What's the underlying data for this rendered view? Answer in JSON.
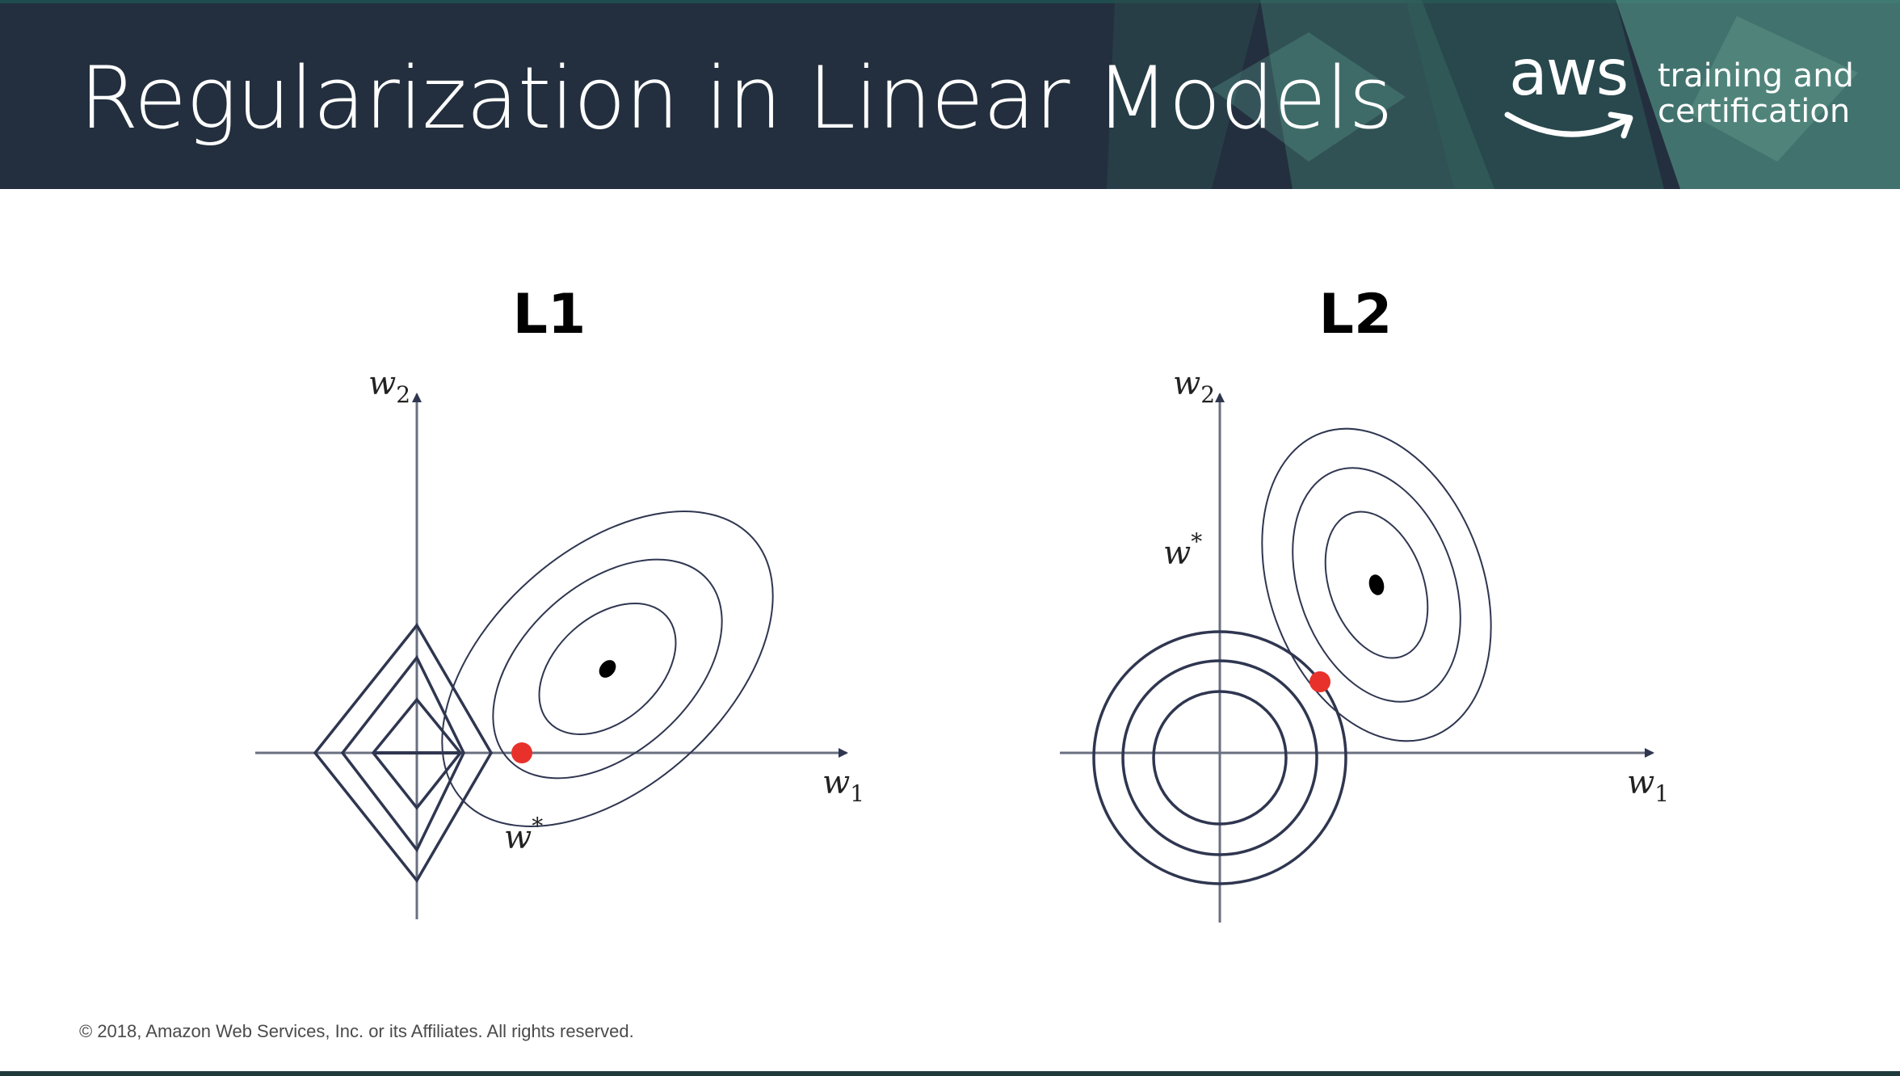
{
  "header": {
    "title": "Regularization in Linear Models",
    "logo": {
      "wordmark": "aws",
      "tagline_line1": "training and",
      "tagline_line2": "certification"
    },
    "colors": {
      "background": "#232f3e",
      "accent": "#2e7d6f"
    }
  },
  "diagrams": [
    {
      "title": "L1",
      "x_axis_label": "w",
      "x_axis_subscript": "1",
      "y_axis_label": "w",
      "y_axis_subscript": "2",
      "optimum_label": "w",
      "optimum_superscript": "*",
      "constraint_shape": "diamond",
      "constraint_levels": 3,
      "loss_contour_levels": 3
    },
    {
      "title": "L2",
      "x_axis_label": "w",
      "x_axis_subscript": "1",
      "y_axis_label": "w",
      "y_axis_subscript": "2",
      "optimum_label": "w",
      "optimum_superscript": "*",
      "constraint_shape": "circle",
      "constraint_levels": 3,
      "loss_contour_levels": 3
    }
  ],
  "colors": {
    "contour": "#2f3650",
    "axis": "#6b7080",
    "solution_point": "#e8312a",
    "loss_minimum": "#000000"
  },
  "footer": {
    "copyright": "© 2018, Amazon Web Services, Inc. or its Affiliates. All rights reserved."
  }
}
